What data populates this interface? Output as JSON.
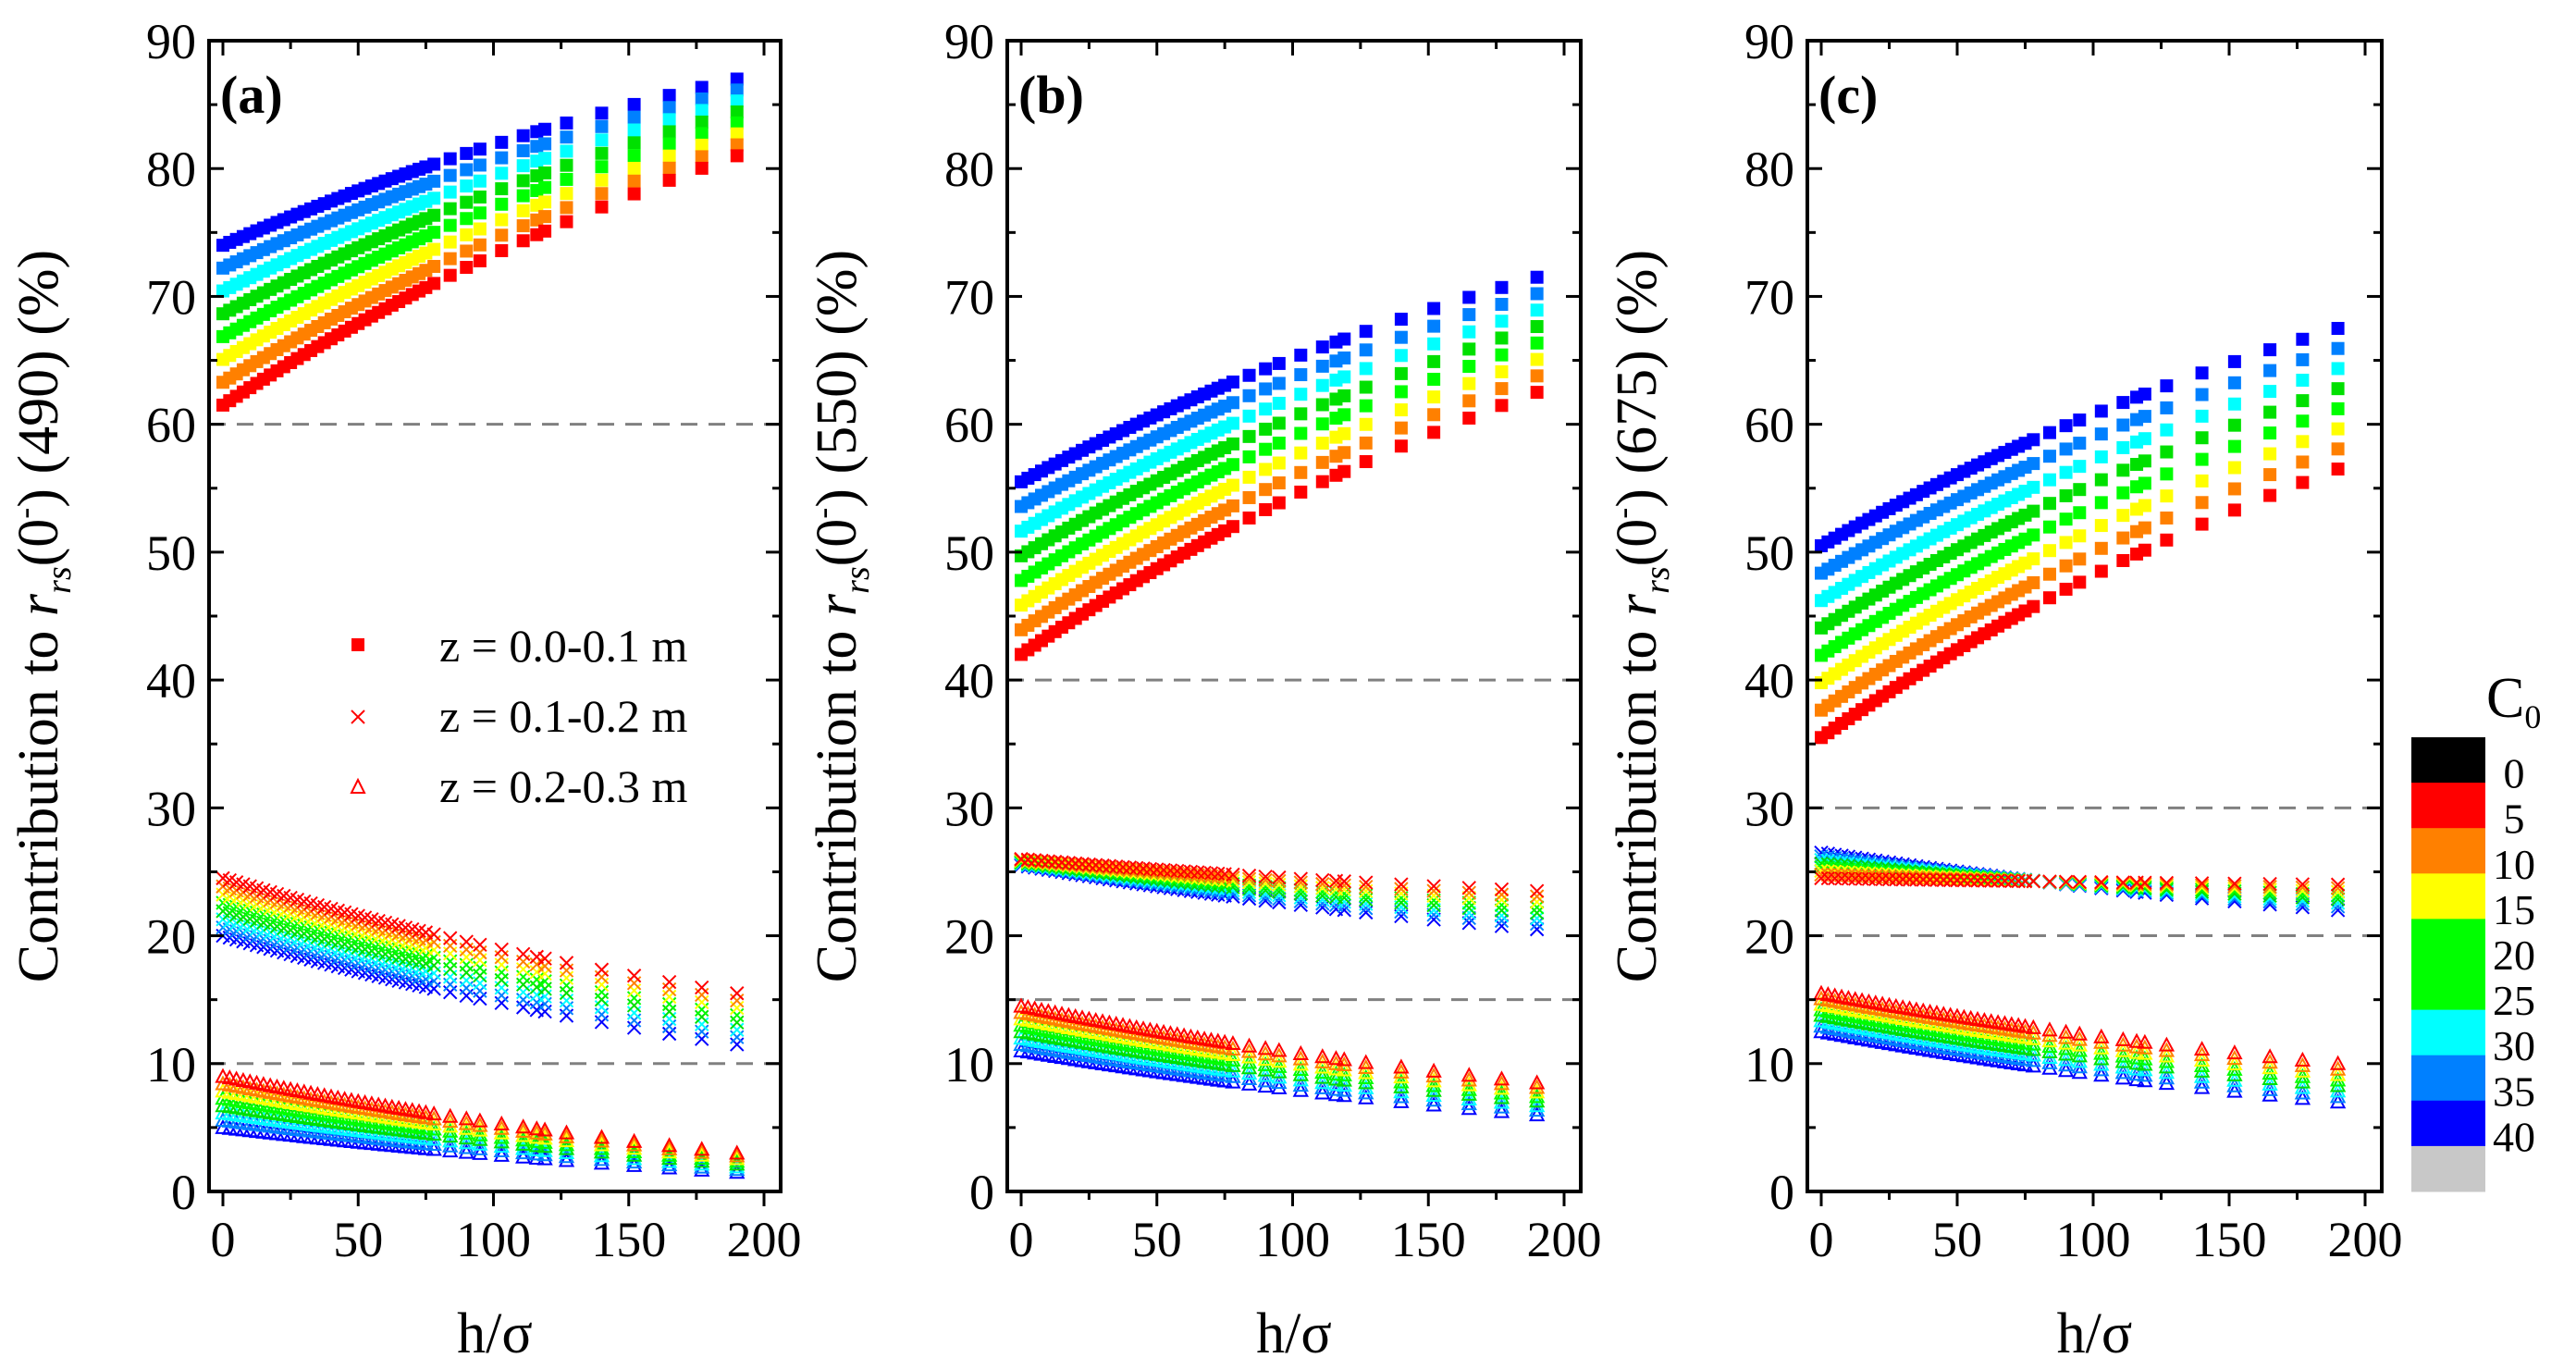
{
  "chart_data": [
    {
      "type": "scatter",
      "panel_label": "(a)",
      "ylabel": {
        "prefix": "Contribution to ",
        "r": "r",
        "sub": "rs",
        "arg": "(0",
        "sup": "-",
        "rest": ") (490) (%)"
      },
      "xlabel": "h/σ",
      "xlim": [
        -5,
        205
      ],
      "ylim": [
        0,
        90
      ],
      "xticks": [
        "0",
        "50",
        "100",
        "150",
        "200"
      ],
      "yticks": [
        "0",
        "10",
        "20",
        "30",
        "40",
        "50",
        "60",
        "70",
        "80",
        "90"
      ],
      "reference_lines": [
        60,
        10
      ],
      "groups": [
        {
          "depth": "z = 0.0-0.1 m",
          "marker": "square",
          "C0_5": [
            61.5,
            81
          ],
          "C0_40": [
            74,
            87
          ]
        },
        {
          "depth": "z = 0.1-0.2 m",
          "marker": "cross",
          "C0_5": [
            24.5,
            15.5
          ],
          "C0_40": [
            20,
            11.5
          ]
        },
        {
          "depth": "z = 0.2-0.3 m",
          "marker": "triangle",
          "C0_5": [
            9,
            3
          ],
          "C0_40": [
            5,
            1.5
          ]
        }
      ]
    },
    {
      "type": "scatter",
      "panel_label": "(b)",
      "ylabel": {
        "prefix": "Contribution to ",
        "r": "r",
        "sub": "rs",
        "arg": "(0",
        "sup": "-",
        "rest": ") (550) (%)"
      },
      "xlabel": "h/σ",
      "xlim": [
        -5,
        205
      ],
      "ylim": [
        0,
        90
      ],
      "xticks": [
        "0",
        "50",
        "100",
        "150",
        "200"
      ],
      "yticks": [
        "0",
        "10",
        "20",
        "30",
        "40",
        "50",
        "60",
        "70",
        "80",
        "90"
      ],
      "reference_lines": [
        40,
        15
      ],
      "groups": [
        {
          "depth": "z = 0.0-0.1 m",
          "marker": "square",
          "C0_5": [
            42,
            62.5
          ],
          "C0_40": [
            55.5,
            71.5
          ]
        },
        {
          "depth": "z = 0.1-0.2 m",
          "marker": "cross",
          "C0_5": [
            26,
            23.5
          ],
          "C0_40": [
            25.5,
            20.5
          ]
        },
        {
          "depth": "z = 0.2-0.3 m",
          "marker": "triangle",
          "C0_5": [
            14.5,
            8.5
          ],
          "C0_40": [
            11,
            6
          ]
        }
      ]
    },
    {
      "type": "scatter",
      "panel_label": "(c)",
      "ylabel": {
        "prefix": "Contribution to ",
        "r": "r",
        "sub": "rs",
        "arg": "(0",
        "sup": "-",
        "rest": ") (675) (%)"
      },
      "xlabel": "h/σ",
      "xlim": [
        -5,
        205
      ],
      "ylim": [
        0,
        90
      ],
      "xticks": [
        "0",
        "50",
        "100",
        "150",
        "200"
      ],
      "yticks": [
        "0",
        "10",
        "20",
        "30",
        "40",
        "50",
        "60",
        "70",
        "80",
        "90"
      ],
      "reference_lines": [
        30,
        20
      ],
      "groups": [
        {
          "depth": "z = 0.0-0.1 m",
          "marker": "square",
          "C0_5": [
            35.5,
            56.5
          ],
          "C0_40": [
            50.5,
            67.5
          ]
        },
        {
          "depth": "z = 0.1-0.2 m",
          "marker": "cross",
          "C0_5": [
            24.5,
            24
          ],
          "C0_40": [
            26.5,
            22
          ]
        },
        {
          "depth": "z = 0.2-0.3 m",
          "marker": "triangle",
          "C0_5": [
            15.5,
            10
          ],
          "C0_40": [
            12.5,
            7
          ]
        }
      ]
    }
  ],
  "x_values": [
    0,
    2.5,
    5,
    7.5,
    10,
    12.5,
    15,
    17.5,
    20,
    22.5,
    25,
    27.5,
    30,
    32.5,
    35,
    37.5,
    40,
    42.5,
    45,
    47.5,
    50,
    52.5,
    55,
    57.5,
    60,
    62.5,
    65,
    67.5,
    70,
    72.5,
    75,
    78,
    84,
    90,
    95,
    103,
    111,
    116,
    119,
    127,
    140,
    152,
    165,
    177,
    190
  ],
  "legend": [
    "z = 0.0-0.1 m",
    "z = 0.1-0.2 m",
    "z = 0.2-0.3 m"
  ],
  "colorbar": {
    "title": "C",
    "title_sub": "0",
    "levels": [
      {
        "label": "0",
        "color": "#000000"
      },
      {
        "label": "5",
        "color": "#ff0000"
      },
      {
        "label": "10",
        "color": "#ff8000"
      },
      {
        "label": "15",
        "color": "#ffff00"
      },
      {
        "label": "20",
        "color": "#00ff00"
      },
      {
        "label": "25",
        "color": "#00ff00"
      },
      {
        "label": "30",
        "color": "#00ffff"
      },
      {
        "label": "35",
        "color": "#0080ff"
      },
      {
        "label": "40",
        "color": "#0000ff"
      },
      {
        "label": "",
        "color": "#c8c8c8"
      }
    ],
    "series_colors": [
      "#ff0000",
      "#ff8000",
      "#ffff00",
      "#00ff00",
      "#00e000",
      "#00ffff",
      "#0080ff",
      "#0000ff"
    ]
  }
}
